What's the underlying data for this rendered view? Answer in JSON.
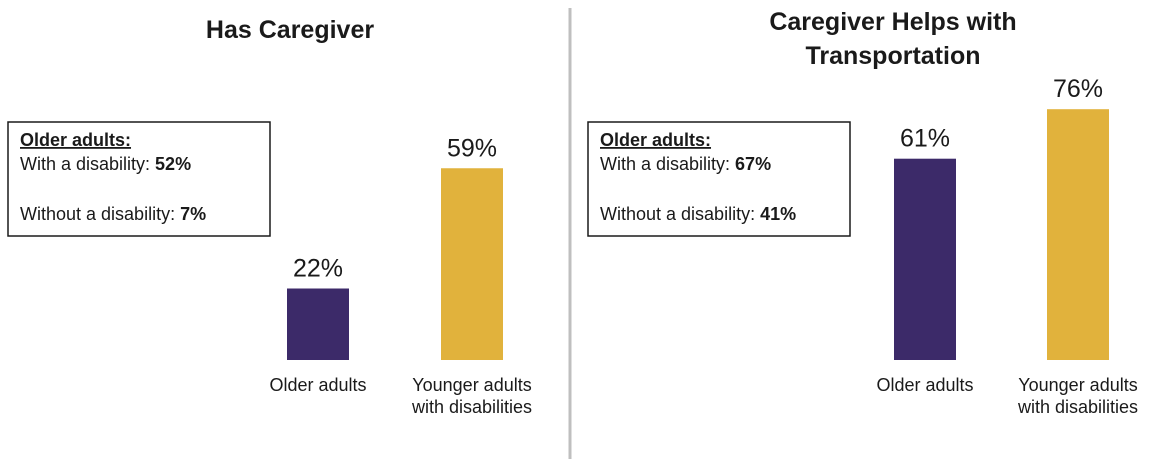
{
  "colors": {
    "older": "#3c2a69",
    "younger": "#e1b23c",
    "divider": "#bfbfbf",
    "box_border": "#1a1a1a"
  },
  "chart_data": [
    {
      "type": "bar",
      "title": "Has Caregiver",
      "categories": [
        "Older adults",
        "Younger adults with disabilities"
      ],
      "values": [
        22,
        59
      ],
      "data_labels": [
        "22%",
        "59%"
      ],
      "ylim": [
        0,
        100
      ],
      "grid": false,
      "note": {
        "heading": "Older adults:",
        "lines": [
          {
            "text": "With a disability: ",
            "value": "52%"
          },
          {
            "text": "Without a disability: ",
            "value": "7%"
          }
        ]
      }
    },
    {
      "type": "bar",
      "title": "Caregiver Helps with Transportation",
      "categories": [
        "Older adults",
        "Younger adults with disabilities"
      ],
      "values": [
        61,
        76
      ],
      "data_labels": [
        "61%",
        "76%"
      ],
      "ylim": [
        0,
        100
      ],
      "grid": false,
      "note": {
        "heading": "Older adults:",
        "lines": [
          {
            "text": "With a disability: ",
            "value": "67%"
          },
          {
            "text": "Without a disability: ",
            "value": "41%"
          }
        ]
      }
    }
  ]
}
